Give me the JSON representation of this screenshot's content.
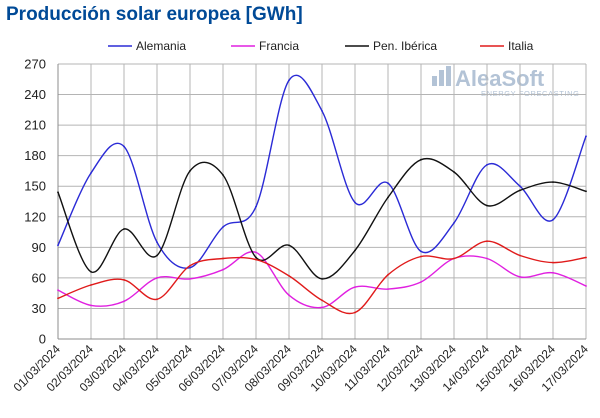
{
  "chart_data": {
    "type": "line",
    "title": "Producción solar europea [GWh]",
    "xlabel": "",
    "ylabel": "",
    "ylim": [
      0,
      270
    ],
    "yticks": [
      0,
      30,
      60,
      90,
      120,
      150,
      180,
      210,
      240,
      270
    ],
    "grid": true,
    "legend_position": "top",
    "x": [
      "01/03/2024",
      "02/03/2024",
      "03/03/2024",
      "04/03/2024",
      "05/03/2024",
      "06/03/2024",
      "07/03/2024",
      "08/03/2024",
      "09/03/2024",
      "10/03/2024",
      "11/03/2024",
      "12/03/2024",
      "13/03/2024",
      "14/03/2024",
      "15/03/2024",
      "16/03/2024",
      "17/03/2024"
    ],
    "series": [
      {
        "name": "Alemania",
        "color": "#2b2bd6",
        "values": [
          92,
          163,
          189,
          95,
          70,
          110,
          130,
          254,
          224,
          134,
          153,
          86,
          114,
          171,
          150,
          117,
          199
        ]
      },
      {
        "name": "Francia",
        "color": "#e020e0",
        "values": [
          48,
          33,
          37,
          60,
          59,
          68,
          85,
          43,
          31,
          51,
          49,
          56,
          79,
          79,
          61,
          65,
          52
        ]
      },
      {
        "name": "Pen. Ibérica",
        "color": "#111111",
        "values": [
          144,
          66,
          108,
          82,
          165,
          161,
          80,
          92,
          59,
          87,
          139,
          176,
          164,
          131,
          146,
          154,
          145
        ]
      },
      {
        "name": "Italia",
        "color": "#e01b1b",
        "values": [
          40,
          53,
          58,
          39,
          72,
          79,
          78,
          62,
          38,
          26,
          63,
          81,
          79,
          96,
          82,
          75,
          80
        ]
      }
    ]
  },
  "watermark": {
    "main": "AleaSoft",
    "sub": "ENERGY FORECASTING"
  }
}
